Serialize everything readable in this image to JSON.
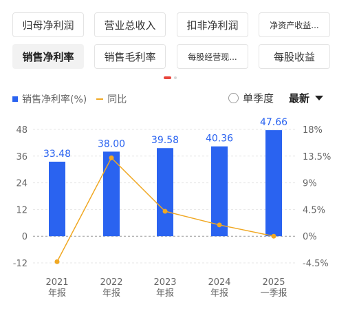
{
  "tabs": [
    {
      "label": "归母净利润",
      "active": false
    },
    {
      "label": "营业总收入",
      "active": false
    },
    {
      "label": "扣非净利润",
      "active": false
    },
    {
      "label": "净资产收益...",
      "active": false
    },
    {
      "label": "销售净利率",
      "active": true
    },
    {
      "label": "销售毛利率",
      "active": false
    },
    {
      "label": "每股经营现...",
      "active": false
    },
    {
      "label": "每股收益",
      "active": false
    }
  ],
  "controls": {
    "season_label": "单季度",
    "latest_label": "最新"
  },
  "colors": {
    "bar": "#2a63f0",
    "line": "#f0a823",
    "active_dot": "#e8453c"
  },
  "chart_data": {
    "type": "bar",
    "categories": [
      "2021\n年报",
      "2022\n年报",
      "2023\n年报",
      "2024\n年报",
      "2025\n一季报"
    ],
    "series": [
      {
        "name": "销售净利率(%)",
        "type": "bar",
        "axis": "left",
        "values": [
          33.48,
          38.0,
          39.58,
          40.36,
          47.66
        ],
        "labels": [
          "33.48",
          "38.00",
          "39.58",
          "40.36",
          "47.66"
        ]
      },
      {
        "name": "同比",
        "type": "line",
        "axis": "right",
        "values": [
          -4.3,
          13.2,
          4.2,
          1.9,
          0.0
        ]
      }
    ],
    "y_left": {
      "ticks": [
        48,
        36,
        24,
        12,
        0,
        -12
      ],
      "range": [
        -12,
        48
      ]
    },
    "y_right": {
      "ticks": [
        "18%",
        "13.5%",
        "9%",
        "4.5%",
        "0%",
        "-4.5%"
      ],
      "range": [
        -4.5,
        18
      ]
    },
    "grid": "dashed horizontal",
    "legend": "top-left"
  }
}
